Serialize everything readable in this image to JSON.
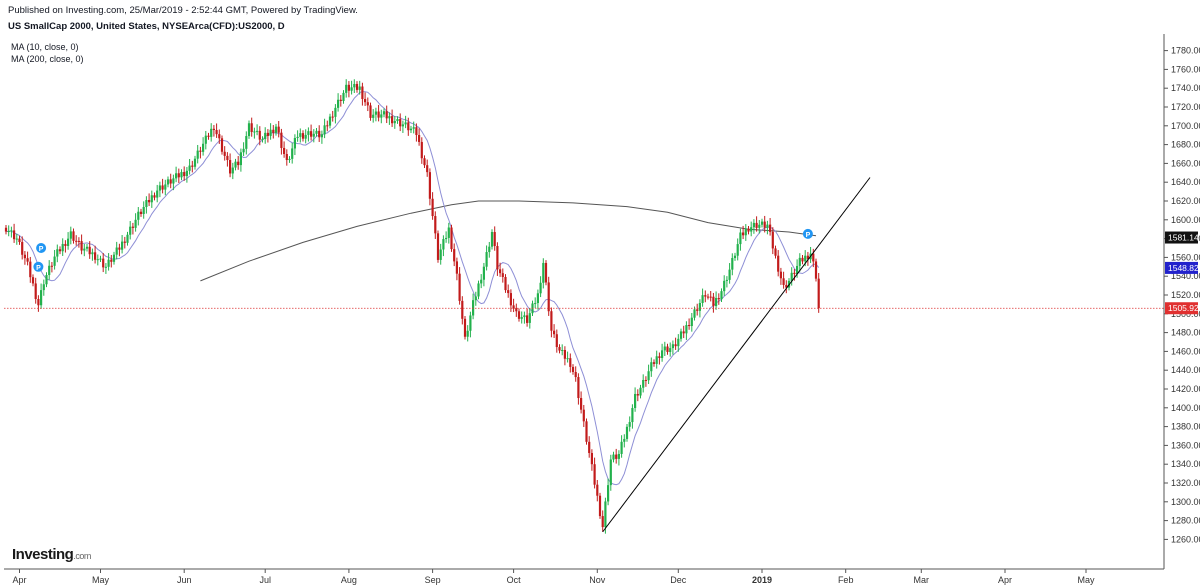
{
  "header": {
    "published": "Published on Investing.com, 25/Mar/2019 - 2:52:44 GMT, Powered by TradingView.",
    "title": "US SmallCap 2000, United States, NYSEArca(CFD):US2000, D"
  },
  "indicators": {
    "ma1_label": "MA (10, close, 0)",
    "ma2_label": "MA (200, close, 0)"
  },
  "logo": {
    "name": "Investing",
    "suffix": ".com"
  },
  "colors": {
    "up": "#22b14c",
    "down": "#c21b1b",
    "ma10": "#8e8fd6",
    "ma200": "#555555",
    "trendline": "#000000",
    "priceline": "#d33",
    "ma200_tag": "#111111",
    "ma10_tag": "#2222cc",
    "price_tag": "#e03030",
    "marker": "#2196f3"
  },
  "chart_data": {
    "type": "candlestick",
    "title": "US SmallCap 2000, United States, NYSEArca(CFD):US2000, D",
    "ylim": [
      1250,
      1790
    ],
    "y_ticks": [
      1260,
      1280,
      1300,
      1320,
      1340,
      1360,
      1380,
      1400,
      1420,
      1440,
      1460,
      1480,
      1500,
      1520,
      1540,
      1560,
      1580,
      1600,
      1620,
      1640,
      1660,
      1680,
      1700,
      1720,
      1740,
      1760,
      1780
    ],
    "x_labels": [
      {
        "label": "Apr",
        "day": 5
      },
      {
        "label": "May",
        "day": 35
      },
      {
        "label": "Jun",
        "day": 66
      },
      {
        "label": "Jul",
        "day": 96
      },
      {
        "label": "Aug",
        "day": 127
      },
      {
        "label": "Sep",
        "day": 158
      },
      {
        "label": "Oct",
        "day": 188
      },
      {
        "label": "Nov",
        "day": 219
      },
      {
        "label": "Dec",
        "day": 249
      },
      {
        "label": "2019",
        "day": 280
      },
      {
        "label": "Feb",
        "day": 311
      },
      {
        "label": "Mar",
        "day": 339
      },
      {
        "label": "Apr",
        "day": 370
      },
      {
        "label": "May",
        "day": 400
      }
    ],
    "key_closes": [
      [
        0,
        1592
      ],
      [
        4,
        1580
      ],
      [
        8,
        1551
      ],
      [
        12,
        1510
      ],
      [
        14,
        1535
      ],
      [
        18,
        1560
      ],
      [
        24,
        1585
      ],
      [
        28,
        1570
      ],
      [
        33,
        1562
      ],
      [
        37,
        1550
      ],
      [
        42,
        1570
      ],
      [
        49,
        1605
      ],
      [
        56,
        1632
      ],
      [
        63,
        1645
      ],
      [
        68,
        1655
      ],
      [
        72,
        1675
      ],
      [
        77,
        1700
      ],
      [
        83,
        1652
      ],
      [
        86,
        1660
      ],
      [
        90,
        1700
      ],
      [
        95,
        1685
      ],
      [
        100,
        1700
      ],
      [
        104,
        1660
      ],
      [
        108,
        1690
      ],
      [
        113,
        1692
      ],
      [
        117,
        1690
      ],
      [
        122,
        1720
      ],
      [
        126,
        1740
      ],
      [
        131,
        1740
      ],
      [
        135,
        1712
      ],
      [
        140,
        1711
      ],
      [
        144,
        1706
      ],
      [
        148,
        1700
      ],
      [
        152,
        1692
      ],
      [
        156,
        1648
      ],
      [
        160,
        1560
      ],
      [
        164,
        1590
      ],
      [
        167,
        1540
      ],
      [
        170,
        1472
      ],
      [
        173,
        1510
      ],
      [
        177,
        1551
      ],
      [
        180,
        1587
      ],
      [
        182,
        1550
      ],
      [
        185,
        1527
      ],
      [
        189,
        1500
      ],
      [
        193,
        1493
      ],
      [
        197,
        1520
      ],
      [
        199,
        1555
      ],
      [
        202,
        1482
      ],
      [
        205,
        1460
      ],
      [
        209,
        1448
      ],
      [
        211,
        1430
      ],
      [
        214,
        1382
      ],
      [
        218,
        1320
      ],
      [
        221,
        1274
      ],
      [
        224,
        1345
      ],
      [
        227,
        1350
      ],
      [
        230,
        1378
      ],
      [
        233,
        1412
      ],
      [
        236,
        1426
      ],
      [
        239,
        1444
      ],
      [
        243,
        1462
      ],
      [
        247,
        1464
      ],
      [
        251,
        1481
      ],
      [
        255,
        1502
      ],
      [
        259,
        1521
      ],
      [
        262,
        1510
      ],
      [
        265,
        1525
      ],
      [
        268,
        1547
      ],
      [
        272,
        1582
      ],
      [
        275,
        1592
      ],
      [
        278,
        1595
      ],
      [
        282,
        1594
      ],
      [
        285,
        1560
      ],
      [
        288,
        1528
      ],
      [
        290,
        1535
      ],
      [
        294,
        1555
      ],
      [
        298,
        1565
      ],
      [
        300,
        1541
      ],
      [
        301,
        1506
      ]
    ],
    "ma200": [
      [
        72,
        1535
      ],
      [
        90,
        1556
      ],
      [
        110,
        1576
      ],
      [
        130,
        1593
      ],
      [
        150,
        1607
      ],
      [
        165,
        1616
      ],
      [
        175,
        1620
      ],
      [
        190,
        1620
      ],
      [
        210,
        1618
      ],
      [
        230,
        1614
      ],
      [
        245,
        1608
      ],
      [
        260,
        1597
      ],
      [
        275,
        1590
      ],
      [
        290,
        1587
      ],
      [
        300,
        1583
      ]
    ],
    "trendline": {
      "start": [
        221,
        1268
      ],
      "end": [
        320,
        1645
      ]
    },
    "markers": [
      {
        "label": "P",
        "day": 13,
        "value": 1570
      },
      {
        "label": "P",
        "day": 12,
        "value": 1550
      },
      {
        "label": "P",
        "day": 297,
        "value": 1585
      }
    ],
    "price_labels": [
      {
        "value": 1581.14,
        "text": "1581.14",
        "kind": "ma200"
      },
      {
        "value": 1548.82,
        "text": "1548.82",
        "kind": "ma10"
      },
      {
        "value": 1505.92,
        "text": "1505.92",
        "kind": "last"
      }
    ],
    "last_close": 1505.92
  }
}
